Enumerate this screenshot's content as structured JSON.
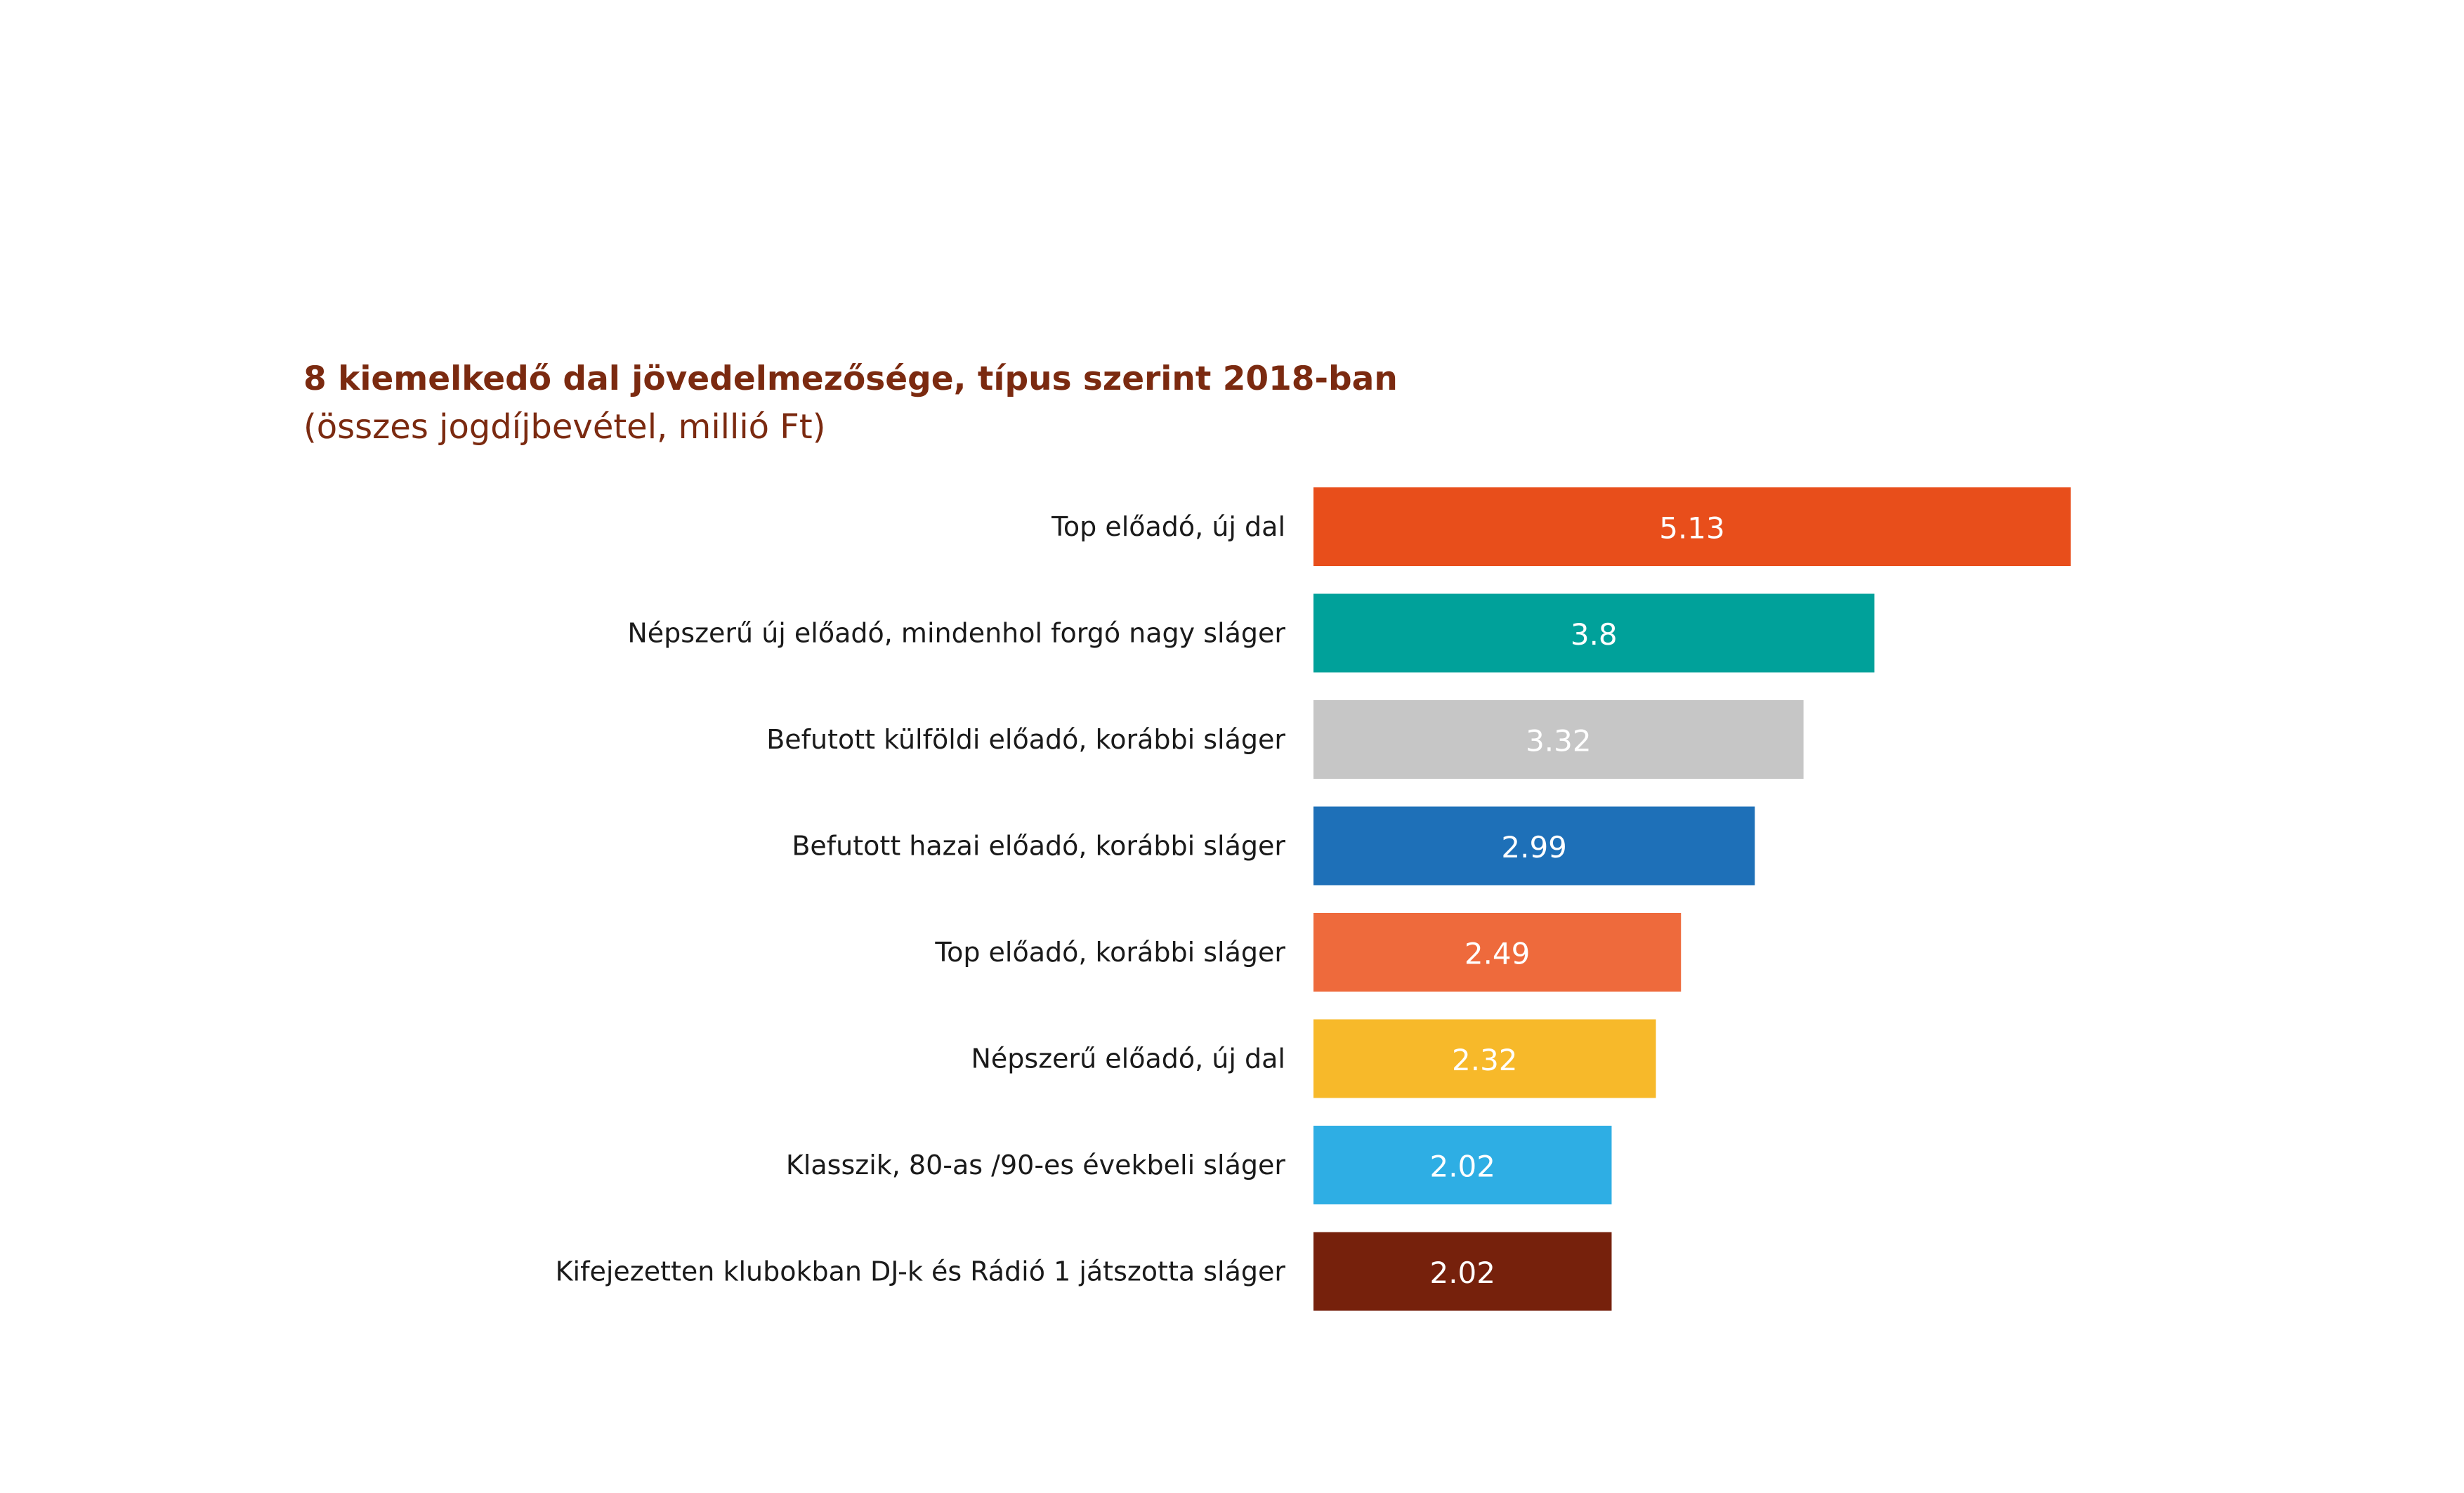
{
  "chart_data": {
    "type": "bar",
    "orientation": "horizontal",
    "title": "8 kiemelkedő dal jövedelmezősége, típus szerint 2018-ban",
    "subtitle": "(összes jogdíjbevétel, millió Ft)",
    "categories": [
      "Top előadó, új dal",
      "Népszerű új előadó, mindenhol forgó nagy sláger",
      "Befutott külföldi előadó, korábbi sláger",
      "Befutott hazai előadó, korábbi sláger",
      "Top előadó, korábbi sláger",
      "Népszerű előadó, új dal",
      "Klasszik, 80-as /90-es évekbeli sláger",
      "Kifejezetten klubokban DJ-k és Rádió 1 játszotta sláger"
    ],
    "values": [
      5.13,
      3.8,
      3.32,
      2.99,
      2.49,
      2.32,
      2.02,
      2.02
    ],
    "value_labels": [
      "5.13",
      "3.8",
      "3.32",
      "2.99",
      "2.49",
      "2.32",
      "2.02",
      "2.02"
    ],
    "colors": [
      "#E84E1B",
      "#00A19A",
      "#C6C6C6",
      "#1E70B8",
      "#EE6A3C",
      "#F7B92A",
      "#2EAEE4",
      "#76210C"
    ],
    "xlim": [
      0,
      5.13
    ],
    "grid": false,
    "legend": "none"
  }
}
